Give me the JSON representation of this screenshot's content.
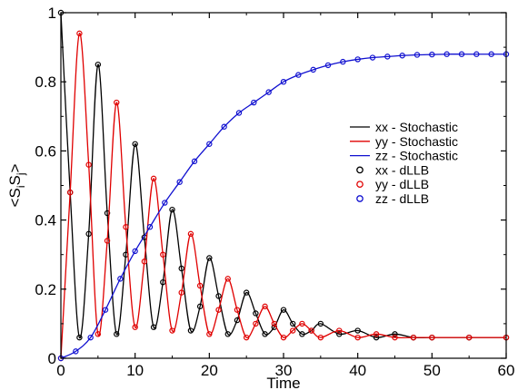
{
  "chart_data": {
    "type": "line",
    "title": "",
    "xlabel": "Time",
    "ylabel_parts": [
      "<S",
      "i",
      "S",
      "j",
      ">"
    ],
    "xlim": [
      0,
      60
    ],
    "ylim": [
      0,
      1
    ],
    "x_ticks": [
      0,
      10,
      20,
      30,
      40,
      50,
      60
    ],
    "y_ticks": [
      0,
      0.2,
      0.4,
      0.6,
      0.8,
      1
    ],
    "x_tick_labels": [
      "0",
      "10",
      "20",
      "30",
      "40",
      "50",
      "60"
    ],
    "y_tick_labels": [
      "0",
      "0.2",
      "0.4",
      "0.6",
      "0.8",
      "1"
    ],
    "grid": false,
    "legend_position": "center-right",
    "legend": [
      {
        "label": "xx - Stochastic",
        "style": "line",
        "color": "#000000"
      },
      {
        "label": "yy - Stochastic",
        "style": "line",
        "color": "#e00000"
      },
      {
        "label": "zz - Stochastic",
        "style": "line",
        "color": "#1010d0"
      },
      {
        "label": "xx - dLLB",
        "style": "circle",
        "color": "#000000"
      },
      {
        "label": "yy - dLLB",
        "style": "circle",
        "color": "#e00000"
      },
      {
        "label": "zz - dLLB",
        "style": "circle",
        "color": "#1010d0"
      }
    ],
    "series": [
      {
        "name": "xx",
        "color": "#000000",
        "x": [
          0,
          1.25,
          2.5,
          3.75,
          5,
          6.25,
          7.5,
          8.75,
          10,
          11.25,
          12.5,
          13.75,
          15,
          16.25,
          17.5,
          18.75,
          20,
          21.25,
          22.5,
          23.75,
          25,
          26.25,
          27.5,
          28.75,
          30,
          31.25,
          32.5,
          33.75,
          35,
          37.5,
          40,
          42.5,
          45,
          47.5,
          50,
          55,
          60
        ],
        "y": [
          1.0,
          0.48,
          0.06,
          0.36,
          0.85,
          0.42,
          0.07,
          0.3,
          0.62,
          0.35,
          0.09,
          0.22,
          0.43,
          0.26,
          0.08,
          0.15,
          0.29,
          0.18,
          0.07,
          0.11,
          0.19,
          0.13,
          0.07,
          0.09,
          0.14,
          0.1,
          0.07,
          0.08,
          0.1,
          0.07,
          0.08,
          0.06,
          0.07,
          0.06,
          0.06,
          0.06,
          0.06
        ]
      },
      {
        "name": "yy",
        "color": "#e00000",
        "x": [
          0,
          1.25,
          2.5,
          3.75,
          5,
          6.25,
          7.5,
          8.75,
          10,
          11.25,
          12.5,
          13.75,
          15,
          16.25,
          17.5,
          18.75,
          20,
          21.25,
          22.5,
          23.75,
          25,
          26.25,
          27.5,
          28.75,
          30,
          31.25,
          32.5,
          33.75,
          35,
          37.5,
          40,
          42.5,
          45,
          47.5,
          50,
          55,
          60
        ],
        "y": [
          0.0,
          0.48,
          0.94,
          0.56,
          0.07,
          0.34,
          0.74,
          0.38,
          0.09,
          0.28,
          0.52,
          0.3,
          0.08,
          0.19,
          0.36,
          0.21,
          0.07,
          0.14,
          0.23,
          0.14,
          0.06,
          0.1,
          0.15,
          0.1,
          0.06,
          0.08,
          0.1,
          0.08,
          0.06,
          0.08,
          0.06,
          0.07,
          0.06,
          0.06,
          0.06,
          0.06,
          0.06
        ]
      },
      {
        "name": "zz",
        "color": "#1010d0",
        "x": [
          0,
          2,
          4,
          6,
          8,
          10,
          12,
          14,
          16,
          18,
          20,
          22,
          24,
          26,
          28,
          30,
          32,
          34,
          36,
          38,
          40,
          42,
          44,
          46,
          48,
          50,
          52,
          54,
          56,
          58,
          60
        ],
        "y": [
          0.0,
          0.02,
          0.06,
          0.14,
          0.23,
          0.31,
          0.38,
          0.45,
          0.51,
          0.57,
          0.62,
          0.67,
          0.71,
          0.74,
          0.77,
          0.8,
          0.82,
          0.835,
          0.848,
          0.858,
          0.865,
          0.87,
          0.873,
          0.876,
          0.878,
          0.879,
          0.88,
          0.88,
          0.88,
          0.88,
          0.88
        ]
      }
    ]
  }
}
